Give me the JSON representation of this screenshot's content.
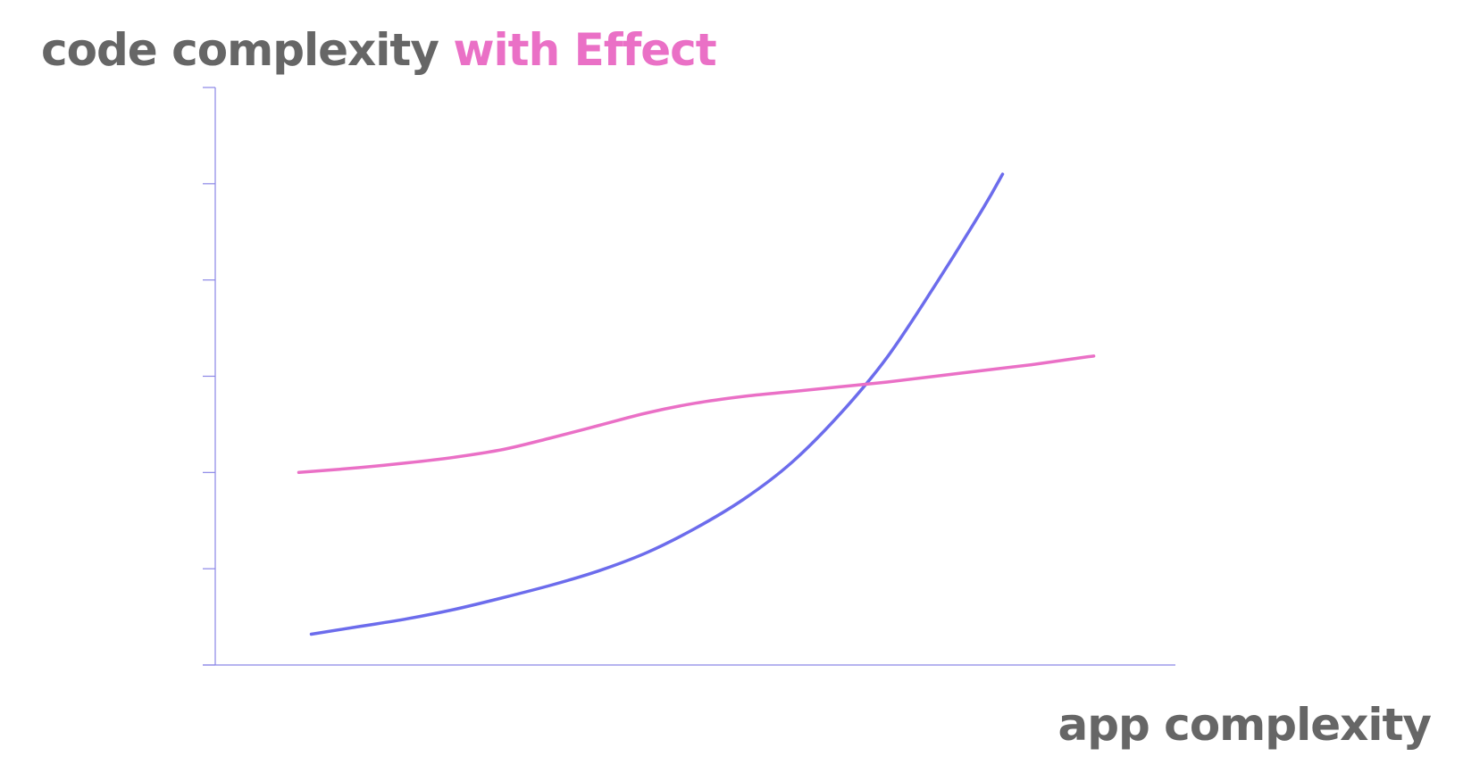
{
  "chart_data": {
    "type": "line",
    "title": {
      "prefix": "code complexity",
      "highlight": "with Effect"
    },
    "xlabel": "app complexity",
    "ylabel": "",
    "xlim": [
      0,
      10
    ],
    "ylim": [
      0,
      6
    ],
    "y_ticks": [
      0,
      1,
      2,
      3,
      4,
      5,
      6
    ],
    "grid": false,
    "legend": "none",
    "series": [
      {
        "color": "#6c6cec",
        "points": [
          [
            1.0,
            0.32
          ],
          [
            1.5,
            0.4
          ],
          [
            2.0,
            0.48
          ],
          [
            2.5,
            0.58
          ],
          [
            3.0,
            0.7
          ],
          [
            3.5,
            0.83
          ],
          [
            4.0,
            0.98
          ],
          [
            4.5,
            1.17
          ],
          [
            5.0,
            1.42
          ],
          [
            5.5,
            1.72
          ],
          [
            6.0,
            2.1
          ],
          [
            6.5,
            2.6
          ],
          [
            7.0,
            3.2
          ],
          [
            7.5,
            3.95
          ],
          [
            8.0,
            4.75
          ],
          [
            8.2,
            5.1
          ]
        ]
      },
      {
        "color": "#ea70c6",
        "points": [
          [
            0.87,
            2.0
          ],
          [
            1.5,
            2.05
          ],
          [
            2.0,
            2.1
          ],
          [
            2.5,
            2.16
          ],
          [
            3.0,
            2.24
          ],
          [
            3.5,
            2.36
          ],
          [
            4.0,
            2.49
          ],
          [
            4.5,
            2.62
          ],
          [
            5.0,
            2.72
          ],
          [
            5.5,
            2.79
          ],
          [
            6.0,
            2.84
          ],
          [
            6.5,
            2.89
          ],
          [
            7.0,
            2.94
          ],
          [
            7.5,
            3.0
          ],
          [
            8.0,
            3.06
          ],
          [
            8.5,
            3.12
          ],
          [
            9.0,
            3.19
          ],
          [
            9.15,
            3.21
          ]
        ]
      }
    ]
  }
}
